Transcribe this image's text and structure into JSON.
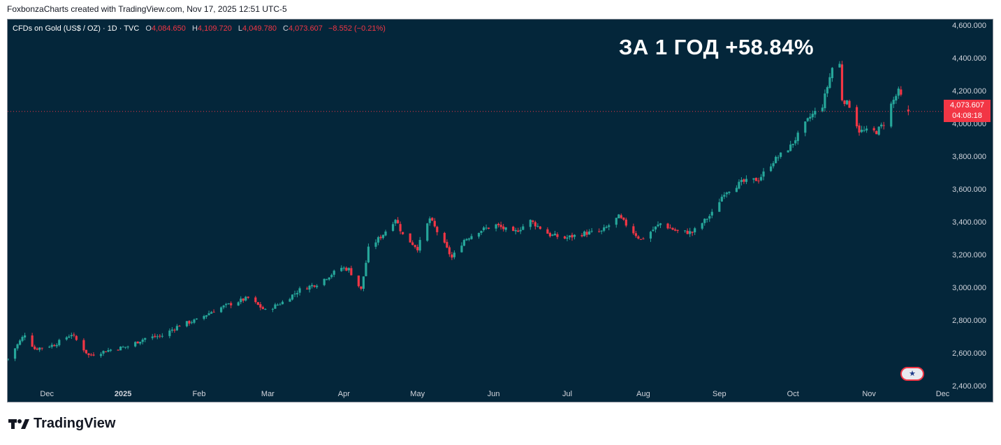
{
  "header": {
    "attribution": "FoxbonzaCharts created with TradingView.com, Nov 17, 2025 12:51 UTC-5"
  },
  "legend": {
    "symbol": "CFDs on Gold (US$ / OZ) · 1D · TVC",
    "open_label": "O",
    "open_value": "4,084.650",
    "high_label": "H",
    "high_value": "4,109.720",
    "low_label": "L",
    "low_value": "4,049.780",
    "close_label": "C",
    "close_value": "4,073.607",
    "change": "−8.552 (−0.21%)"
  },
  "headline": "ЗА 1 ГОД +58.84%",
  "price_tag": {
    "price": "4,073.607",
    "countdown": "04:08:18"
  },
  "footer": {
    "brand": "TradingView"
  },
  "colors": {
    "background": "#04263a",
    "up": "#26a69a",
    "down": "#f23645",
    "axis_text": "#d1d4dc"
  },
  "chart_data": {
    "type": "candlestick",
    "current_price": 4073.607,
    "ylim": [
      2400,
      4600
    ],
    "y_ticks": [
      2400,
      2600,
      2800,
      3000,
      3200,
      3400,
      3600,
      3800,
      4000,
      4200,
      4400,
      4600
    ],
    "y_tick_labels": [
      "2,400.000",
      "2,600.000",
      "2,800.000",
      "3,000.000",
      "3,200.000",
      "3,400.000",
      "3,600.000",
      "3,800.000",
      "4,000.000",
      "4,200.000",
      "4,400.000",
      "4,600.000"
    ],
    "x_range": [
      "2024-11-15",
      "2025-11-30"
    ],
    "x_ticks": [
      {
        "date": "2024-12-01",
        "label": "Dec"
      },
      {
        "date": "2025-01-01",
        "label": "2025"
      },
      {
        "date": "2025-02-01",
        "label": "Feb"
      },
      {
        "date": "2025-03-01",
        "label": "Mar"
      },
      {
        "date": "2025-04-01",
        "label": "Apr"
      },
      {
        "date": "2025-05-01",
        "label": "May"
      },
      {
        "date": "2025-06-01",
        "label": "Jun"
      },
      {
        "date": "2025-07-01",
        "label": "Jul"
      },
      {
        "date": "2025-08-01",
        "label": "Aug"
      },
      {
        "date": "2025-09-01",
        "label": "Sep"
      },
      {
        "date": "2025-10-01",
        "label": "Oct"
      },
      {
        "date": "2025-11-01",
        "label": "Nov"
      },
      {
        "date": "2025-12-01",
        "label": "Dec"
      }
    ],
    "price_anchors": [
      [
        "2024-11-15",
        2565
      ],
      [
        "2024-11-22",
        2715
      ],
      [
        "2024-11-26",
        2625
      ],
      [
        "2024-12-04",
        2650
      ],
      [
        "2024-12-11",
        2715
      ],
      [
        "2024-12-18",
        2585
      ],
      [
        "2024-12-27",
        2620
      ],
      [
        "2025-01-03",
        2640
      ],
      [
        "2025-01-10",
        2690
      ],
      [
        "2025-01-17",
        2705
      ],
      [
        "2025-01-24",
        2770
      ],
      [
        "2025-01-31",
        2800
      ],
      [
        "2025-02-07",
        2860
      ],
      [
        "2025-02-14",
        2900
      ],
      [
        "2025-02-21",
        2935
      ],
      [
        "2025-02-28",
        2858
      ],
      [
        "2025-03-07",
        2910
      ],
      [
        "2025-03-14",
        2985
      ],
      [
        "2025-03-21",
        3022
      ],
      [
        "2025-03-31",
        3120
      ],
      [
        "2025-04-03",
        3110
      ],
      [
        "2025-04-08",
        2985
      ],
      [
        "2025-04-11",
        3235
      ],
      [
        "2025-04-17",
        3325
      ],
      [
        "2025-04-22",
        3420
      ],
      [
        "2025-04-25",
        3320
      ],
      [
        "2025-05-01",
        3240
      ],
      [
        "2025-05-06",
        3420
      ],
      [
        "2025-05-15",
        3180
      ],
      [
        "2025-05-20",
        3290
      ],
      [
        "2025-05-26",
        3345
      ],
      [
        "2025-06-02",
        3380
      ],
      [
        "2025-06-09",
        3330
      ],
      [
        "2025-06-16",
        3405
      ],
      [
        "2025-06-24",
        3320
      ],
      [
        "2025-06-30",
        3300
      ],
      [
        "2025-07-08",
        3330
      ],
      [
        "2025-07-15",
        3340
      ],
      [
        "2025-07-22",
        3430
      ],
      [
        "2025-07-31",
        3290
      ],
      [
        "2025-08-08",
        3390
      ],
      [
        "2025-08-15",
        3340
      ],
      [
        "2025-08-21",
        3335
      ],
      [
        "2025-08-29",
        3450
      ],
      [
        "2025-09-03",
        3580
      ],
      [
        "2025-09-10",
        3640
      ],
      [
        "2025-09-17",
        3660
      ],
      [
        "2025-09-23",
        3770
      ],
      [
        "2025-09-30",
        3860
      ],
      [
        "2025-10-08",
        4040
      ],
      [
        "2025-10-13",
        4110
      ],
      [
        "2025-10-17",
        4340
      ],
      [
        "2025-10-20",
        4360
      ],
      [
        "2025-10-21",
        4150
      ],
      [
        "2025-10-24",
        4110
      ],
      [
        "2025-10-28",
        3955
      ],
      [
        "2025-11-04",
        3950
      ],
      [
        "2025-11-07",
        4000
      ],
      [
        "2025-11-10",
        4115
      ],
      [
        "2025-11-13",
        4195
      ],
      [
        "2025-11-17",
        4073.607
      ]
    ]
  }
}
